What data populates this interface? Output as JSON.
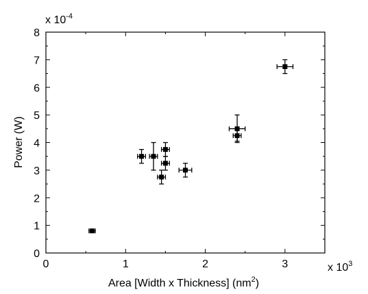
{
  "chart_data": {
    "type": "scatter",
    "title": "",
    "xlabel": "Area [Width x Thickness] (nm",
    "xlabel_sup": "2",
    "xlabel_end": ")",
    "ylabel": "Power (W)",
    "x_multiplier": "x 10",
    "x_multiplier_exp": "3",
    "y_multiplier": "x 10",
    "y_multiplier_exp": "-4",
    "xlim": [
      0,
      3.5
    ],
    "ylim": [
      0,
      8
    ],
    "x_ticks": [
      "0",
      "1",
      "2",
      "3"
    ],
    "y_ticks": [
      "0",
      "1",
      "2",
      "3",
      "4",
      "5",
      "6",
      "7",
      "8"
    ],
    "grid": false,
    "legend": "none",
    "marker_color": "#000000",
    "points": [
      {
        "x": 0.58,
        "y": 0.8,
        "xerr": 0.04,
        "yerr": 0.05
      },
      {
        "x": 1.2,
        "y": 3.5,
        "xerr": 0.05,
        "yerr": 0.25
      },
      {
        "x": 1.35,
        "y": 3.5,
        "xerr": 0.05,
        "yerr": 0.5
      },
      {
        "x": 1.45,
        "y": 2.75,
        "xerr": 0.05,
        "yerr": 0.25
      },
      {
        "x": 1.5,
        "y": 3.75,
        "xerr": 0.05,
        "yerr": 0.25
      },
      {
        "x": 1.5,
        "y": 3.25,
        "xerr": 0.05,
        "yerr": 0.25
      },
      {
        "x": 1.75,
        "y": 3.0,
        "xerr": 0.08,
        "yerr": 0.25
      },
      {
        "x": 2.4,
        "y": 4.5,
        "xerr": 0.1,
        "yerr": 0.5
      },
      {
        "x": 2.4,
        "y": 4.25,
        "xerr": 0.05,
        "yerr": 0.2
      },
      {
        "x": 3.0,
        "y": 6.75,
        "xerr": 0.1,
        "yerr": 0.25
      }
    ]
  }
}
